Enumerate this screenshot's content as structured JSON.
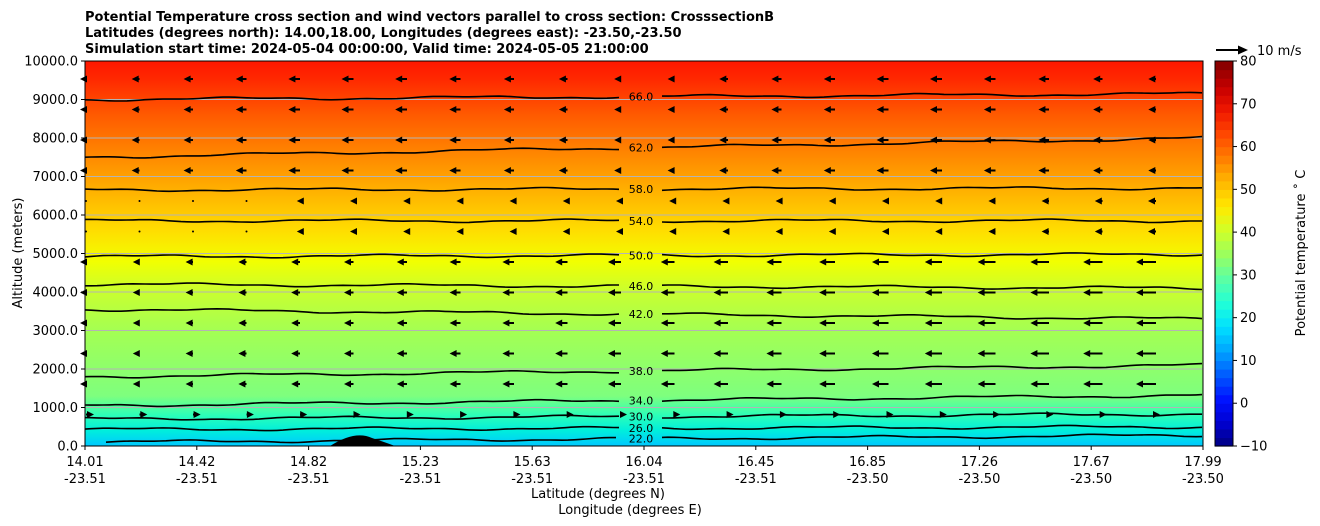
{
  "chart_data": {
    "type": "heatmap",
    "title_lines": [
      "Potential Temperature cross section and wind vectors parallel to cross section: CrosssectionB",
      "Latitudes (degrees north): 14.00,18.00, Longitudes (degrees east): -23.50,-23.50",
      "Simulation start time: 2024-05-04 00:00:00, Valid time: 2024-05-05 21:00:00"
    ],
    "xlabel": "Latitude (degrees N)",
    "xlabel2": "Longitude (degrees E)",
    "ylabel": "Altitude (meters)",
    "ylim": [
      0,
      10000
    ],
    "yticks": [
      "0.0",
      "1000.0",
      "2000.0",
      "3000.0",
      "4000.0",
      "5000.0",
      "6000.0",
      "7000.0",
      "8000.0",
      "9000.0",
      "10000.0"
    ],
    "xticks_lat": [
      "14.01",
      "14.42",
      "14.82",
      "15.23",
      "15.63",
      "16.04",
      "16.45",
      "16.85",
      "17.26",
      "17.67",
      "17.99"
    ],
    "xticks_lon": [
      "-23.51",
      "-23.51",
      "-23.51",
      "-23.51",
      "-23.51",
      "-23.51",
      "-23.51",
      "-23.50",
      "-23.50",
      "-23.50",
      "-23.50"
    ],
    "colorbar": {
      "label": "Potential temperature ˚ C",
      "range": [
        -10,
        80
      ],
      "ticks": [
        "−10",
        "0",
        "10",
        "20",
        "30",
        "40",
        "50",
        "60",
        "70",
        "80"
      ]
    },
    "quiver_key": {
      "label": "10 m/s"
    },
    "contours": [
      {
        "level": 22,
        "label": "22.0",
        "altitude_left": 100,
        "altitude_right": 280
      },
      {
        "level": 26,
        "label": "26.0",
        "altitude_left": 430,
        "altitude_right": 500
      },
      {
        "level": 30,
        "label": "30.0",
        "altitude_left": 700,
        "altitude_right": 830
      },
      {
        "level": 34,
        "label": "34.0",
        "altitude_left": 1050,
        "altitude_right": 1320
      },
      {
        "level": 38,
        "label": "38.0",
        "altitude_left": 1800,
        "altitude_right": 2100
      },
      {
        "level": 42,
        "label": "42.0",
        "altitude_left": 3550,
        "altitude_right": 3300
      },
      {
        "level": 46,
        "label": "46.0",
        "altitude_left": 4200,
        "altitude_right": 4100
      },
      {
        "level": 50,
        "label": "50.0",
        "altitude_left": 4920,
        "altitude_right": 4980
      },
      {
        "level": 54,
        "label": "54.0",
        "altitude_left": 5850,
        "altitude_right": 5850
      },
      {
        "level": 58,
        "label": "58.0",
        "altitude_left": 6650,
        "altitude_right": 6700
      },
      {
        "level": 62,
        "label": "62.0",
        "altitude_left": 7500,
        "altitude_right": 8000
      },
      {
        "level": 66,
        "label": "66.0",
        "altitude_left": 9000,
        "altitude_right": 9150
      }
    ]
  }
}
